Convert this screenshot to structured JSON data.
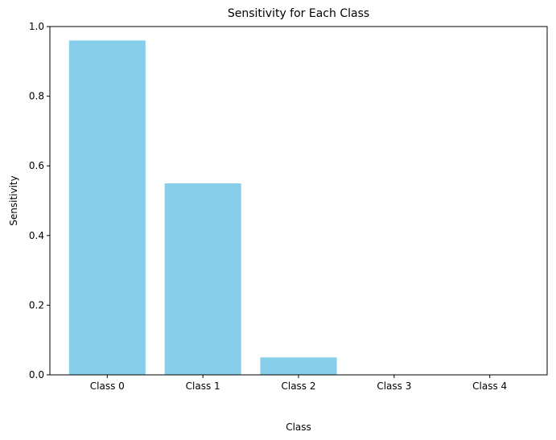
{
  "chart_data": {
    "type": "bar",
    "title": "Sensitivity for Each Class",
    "xlabel": "Class",
    "ylabel": "Sensitivity",
    "categories": [
      "Class 0",
      "Class 1",
      "Class 2",
      "Class 3",
      "Class 4"
    ],
    "values": [
      0.96,
      0.55,
      0.05,
      0.0,
      0.0
    ],
    "ylim": [
      0,
      1.0
    ],
    "yticks": [
      "0.0",
      "0.2",
      "0.4",
      "0.6",
      "0.8",
      "1.0"
    ],
    "grid": false,
    "legend": "none",
    "bar_color": "#87ceeb"
  }
}
